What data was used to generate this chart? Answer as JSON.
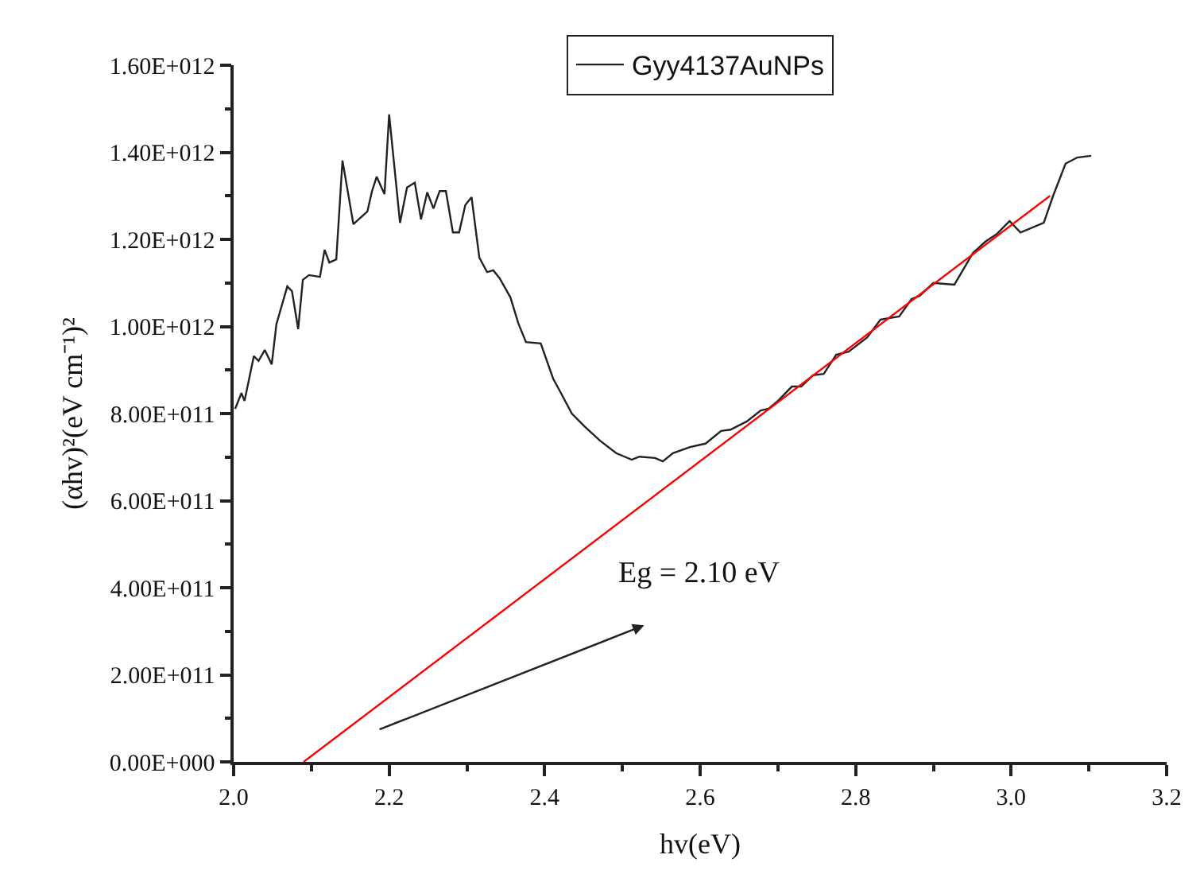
{
  "chart_data": {
    "type": "line",
    "xlabel": "hv(eV)",
    "ylabel": "(αhv)²(eV cm⁻¹)²",
    "xlim": [
      2.0,
      3.2
    ],
    "xticks": [
      {
        "value": 2.0,
        "label": "2.0"
      },
      2.2,
      2.4,
      2.6,
      2.8,
      {
        "value": 3.0,
        "label": "3.0"
      },
      3.2
    ],
    "ylim": [
      0,
      1600000000000.0
    ],
    "yticks": [
      {
        "value": 0,
        "label": "0.00E+000"
      },
      {
        "value": 200000000000.0,
        "label": "2.00E+011"
      },
      {
        "value": 400000000000.0,
        "label": "4.00E+011"
      },
      {
        "value": 600000000000.0,
        "label": "6.00E+011"
      },
      {
        "value": 800000000000.0,
        "label": "8.00E+011"
      },
      {
        "value": 1000000000000.0,
        "label": "1.00E+012"
      },
      {
        "value": 1200000000000.0,
        "label": "1.20E+012"
      },
      {
        "value": 1400000000000.0,
        "label": "1.40E+012"
      },
      {
        "value": 1600000000000.0,
        "label": "1.60E+012"
      }
    ],
    "legend": "top",
    "marker": "none",
    "line_style": "solid",
    "annotations": [
      "Eg = 2.10 eV"
    ],
    "series": [
      {
        "name": "Gyy4137AuNPs",
        "color": "#222222",
        "x": [
          2.002,
          2.01,
          2.014,
          2.026,
          2.032,
          2.04,
          2.049,
          2.055,
          2.069,
          2.075,
          2.083,
          2.089,
          2.097,
          2.111,
          2.117,
          2.123,
          2.132,
          2.14,
          2.154,
          2.172,
          2.178,
          2.184,
          2.194,
          2.2,
          2.214,
          2.223,
          2.233,
          2.241,
          2.249,
          2.257,
          2.265,
          2.273,
          2.282,
          2.29,
          2.298,
          2.306,
          2.316,
          2.326,
          2.334,
          2.342,
          2.356,
          2.366,
          2.376,
          2.395,
          2.411,
          2.421,
          2.435,
          2.451,
          2.471,
          2.492,
          2.512,
          2.522,
          2.542,
          2.552,
          2.565,
          2.587,
          2.607,
          2.627,
          2.639,
          2.66,
          2.678,
          2.688,
          2.7,
          2.718,
          2.73,
          2.745,
          2.759,
          2.775,
          2.791,
          2.815,
          2.832,
          2.856,
          2.872,
          2.882,
          2.9,
          2.927,
          2.951,
          2.967,
          2.982,
          2.998,
          3.012,
          3.042,
          3.054,
          3.07,
          3.085,
          3.103
        ],
        "values": [
          811000000000.0,
          847000000000.0,
          829000000000.0,
          932000000000.0,
          921000000000.0,
          946000000000.0,
          913000000000.0,
          1005000000000.0,
          1092000000000.0,
          1081000000000.0,
          994000000000.0,
          1107000000000.0,
          1118000000000.0,
          1114000000000.0,
          1176000000000.0,
          1147000000000.0,
          1154000000000.0,
          1381000000000.0,
          1235000000000.0,
          1264000000000.0,
          1311000000000.0,
          1344000000000.0,
          1304000000000.0,
          1487000000000.0,
          1238000000000.0,
          1319000000000.0,
          1330000000000.0,
          1246000000000.0,
          1308000000000.0,
          1271000000000.0,
          1311000000000.0,
          1311000000000.0,
          1216000000000.0,
          1216000000000.0,
          1279000000000.0,
          1297000000000.0,
          1158000000000.0,
          1125000000000.0,
          1129000000000.0,
          1111000000000.0,
          1067000000000.0,
          1008000000000.0,
          964000000000.0,
          961000000000.0,
          880000000000.0,
          847000000000.0,
          800000000000.0,
          771000000000.0,
          738000000000.0,
          709000000000.0,
          694000000000.0,
          701000000000.0,
          698000000000.0,
          690000000000.0,
          709000000000.0,
          723000000000.0,
          731000000000.0,
          760000000000.0,
          763000000000.0,
          782000000000.0,
          807000000000.0,
          811000000000.0,
          829000000000.0,
          862000000000.0,
          862000000000.0,
          888000000000.0,
          891000000000.0,
          935000000000.0,
          942000000000.0,
          975000000000.0,
          1016000000000.0,
          1023000000000.0,
          1063000000000.0,
          1070000000000.0,
          1100000000000.0,
          1096000000000.0,
          1169000000000.0,
          1195000000000.0,
          1213000000000.0,
          1242000000000.0,
          1216000000000.0,
          1238000000000.0,
          1300000000000.0,
          1374000000000.0,
          1388000000000.0,
          1392000000000.0
        ]
      },
      {
        "color": "#ff0000",
        "x": [
          2.09,
          3.05
        ],
        "values": [
          0,
          1300000000000.0
        ]
      }
    ]
  }
}
